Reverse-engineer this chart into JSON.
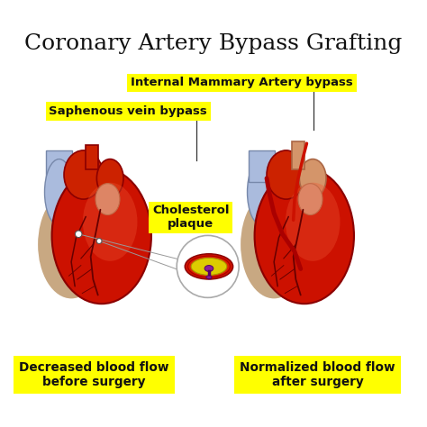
{
  "title": "Coronary Artery Bypass Grafting",
  "title_fontsize": 18,
  "title_color": "#111111",
  "background_color": "#ffffff",
  "yellow_color": "#FFFF00",
  "labels": {
    "internal_mammary": "Internal Mammary Artery bypass",
    "saphenous": "Saphenous vein bypass",
    "cholesterol": "Cholesterol\nplaque",
    "left_caption": "Decreased blood flow\nbefore surgery",
    "right_caption": "Normalized blood flow\nafter surgery"
  },
  "dark_red": "#8B0000",
  "mid_red": "#CC2200",
  "bright_red": "#CC1100",
  "light_red": "#EE5533",
  "pale_red": "#CC8877",
  "peach": "#D4956A",
  "tan": "#C8A882",
  "blue_gray": "#8899BB",
  "blue_gray2": "#99AACC",
  "blue_lavender": "#AABBDD",
  "vessel_dark": "#660000",
  "lhx": 0.195,
  "lhy": 0.455,
  "lhw": 0.32,
  "lhh": 0.46,
  "rhx": 0.73,
  "rhy": 0.455,
  "rhw": 0.32,
  "rhh": 0.46
}
